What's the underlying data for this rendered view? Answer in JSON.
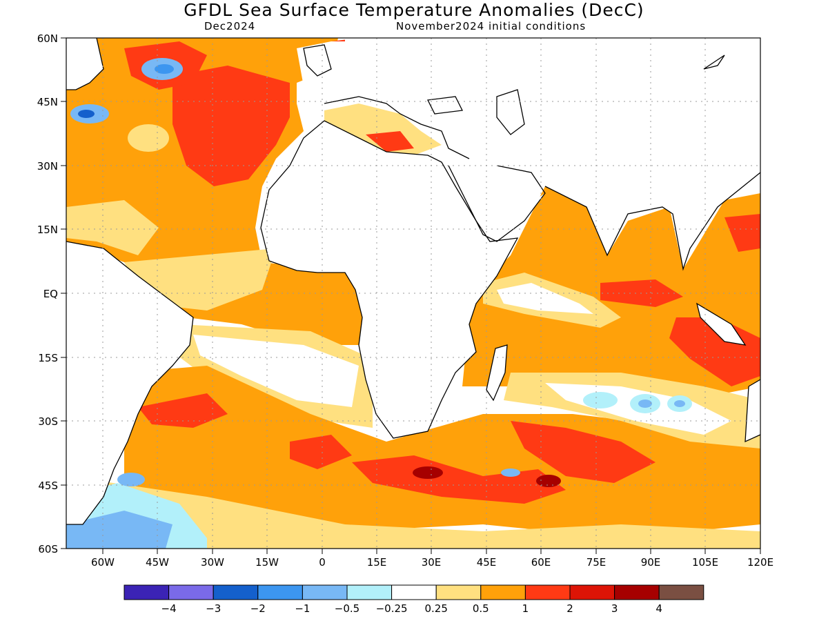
{
  "header": {
    "title": "GFDL Sea Surface Temperature Anomalies (DecC)",
    "valid": "Dec2024",
    "init": "November2024 initial conditions"
  },
  "map": {
    "lat_labels": [
      "60N",
      "45N",
      "30N",
      "15N",
      "EQ",
      "15S",
      "30S",
      "45S",
      "60S"
    ],
    "lon_labels": [
      "60W",
      "45W",
      "30W",
      "15W",
      "0",
      "15E",
      "30E",
      "45E",
      "60E",
      "75E",
      "90E",
      "105E",
      "120E"
    ],
    "lat_range": [
      -60,
      60
    ],
    "lon_range": [
      -70,
      120
    ],
    "grid": "dotted"
  },
  "colorbar": {
    "colors": [
      "#3b23b5",
      "#7a6ae8",
      "#1460cc",
      "#3c96f0",
      "#78b8f5",
      "#b2f0fa",
      "#ffffff",
      "#ffe080",
      "#ffa10a",
      "#ff3a14",
      "#dd1406",
      "#a60000",
      "#7a4f42"
    ],
    "labels": [
      "-4",
      "-3",
      "-2",
      "-1",
      "-0.5",
      "-0.25",
      "0.25",
      "0.5",
      "1",
      "2",
      "3",
      "4"
    ]
  }
}
